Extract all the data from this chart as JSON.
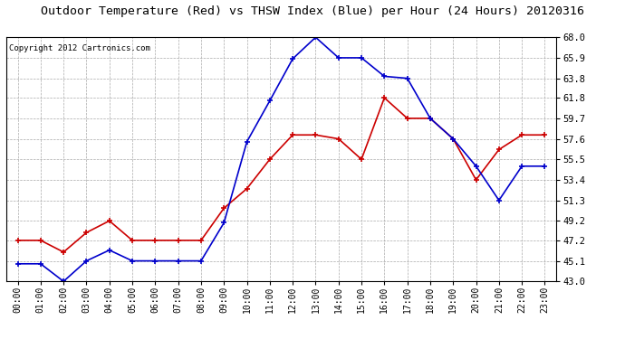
{
  "title": "Outdoor Temperature (Red) vs THSW Index (Blue) per Hour (24 Hours) 20120316",
  "copyright_text": "Copyright 2012 Cartronics.com",
  "x_labels": [
    "00:00",
    "01:00",
    "02:00",
    "03:00",
    "04:00",
    "05:00",
    "06:00",
    "07:00",
    "08:00",
    "09:00",
    "10:00",
    "11:00",
    "12:00",
    "13:00",
    "14:00",
    "15:00",
    "16:00",
    "17:00",
    "18:00",
    "19:00",
    "20:00",
    "21:00",
    "22:00",
    "23:00"
  ],
  "red_data": [
    47.2,
    47.2,
    46.0,
    48.0,
    49.2,
    47.2,
    47.2,
    47.2,
    47.2,
    50.5,
    52.5,
    55.5,
    58.0,
    58.0,
    57.6,
    55.5,
    61.8,
    59.7,
    59.7,
    57.6,
    53.4,
    56.5,
    58.0,
    58.0
  ],
  "blue_data": [
    44.8,
    44.8,
    43.0,
    45.1,
    46.2,
    45.1,
    45.1,
    45.1,
    45.1,
    49.0,
    57.3,
    61.5,
    65.8,
    68.0,
    65.9,
    65.9,
    64.0,
    63.8,
    59.7,
    57.6,
    54.8,
    51.3,
    54.8,
    54.8
  ],
  "ylim": [
    43.0,
    68.0
  ],
  "yticks": [
    43.0,
    45.1,
    47.2,
    49.2,
    51.3,
    53.4,
    55.5,
    57.6,
    59.7,
    61.8,
    63.8,
    65.9,
    68.0
  ],
  "red_color": "#cc0000",
  "blue_color": "#0000cc",
  "grid_color": "#aaaaaa",
  "bg_color": "#ffffff",
  "title_fontsize": 9.5,
  "copyright_fontsize": 6.5,
  "tick_fontsize": 7.0,
  "ytick_fontsize": 7.5
}
